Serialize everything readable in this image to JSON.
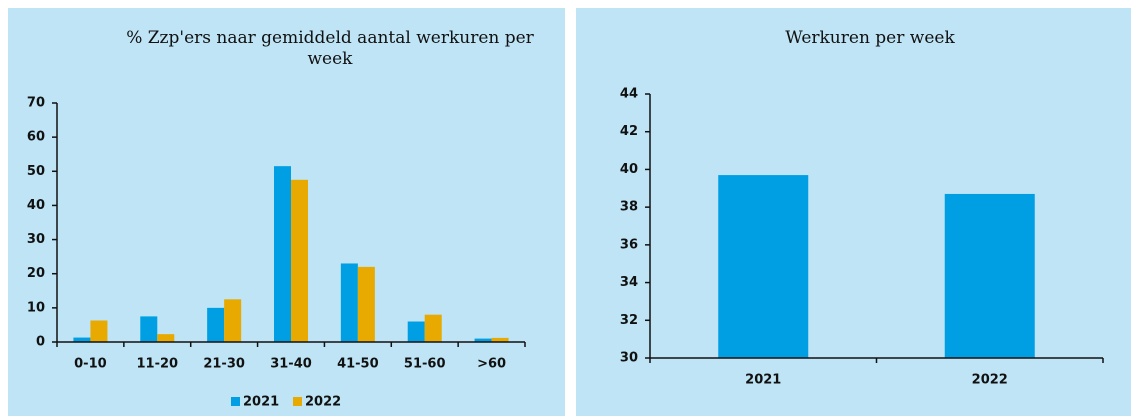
{
  "chart_data": [
    {
      "type": "bar",
      "title": "% Zzp'ers naar gemiddeld aantal werkuren per week",
      "categories": [
        "0-10",
        "11-20",
        "21-30",
        "31-40",
        "41-50",
        "51-60",
        ">60"
      ],
      "series": [
        {
          "name": "2021",
          "color": "#009fe3",
          "values": [
            1.3,
            7.5,
            10,
            51.5,
            23,
            6,
            1
          ]
        },
        {
          "name": "2022",
          "color": "#e8a900",
          "values": [
            6.3,
            2.3,
            12.5,
            47.5,
            22,
            8,
            1.2
          ]
        }
      ],
      "ylim": [
        0,
        70
      ],
      "yticks": [
        0,
        10,
        20,
        30,
        40,
        50,
        60,
        70
      ],
      "legend": "bottom"
    },
    {
      "type": "bar",
      "title": "Werkuren per week",
      "categories": [
        "2021",
        "2022"
      ],
      "series": [
        {
          "color": "#009fe3",
          "values": [
            39.7,
            38.7
          ]
        }
      ],
      "ylim": [
        30,
        44
      ],
      "yticks": [
        30,
        32,
        34,
        36,
        38,
        40,
        42,
        44
      ]
    }
  ]
}
